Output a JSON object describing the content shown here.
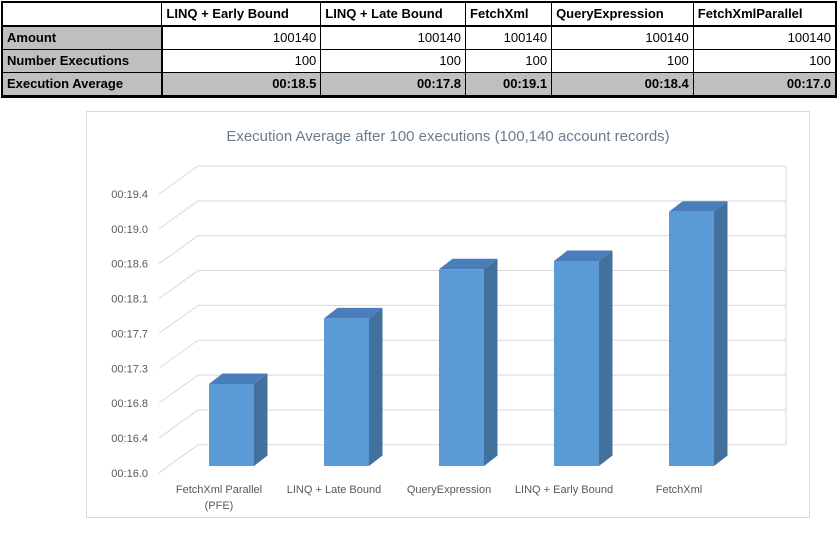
{
  "table": {
    "header": [
      "",
      "LINQ + Early Bound",
      "LINQ + Late Bound",
      "FetchXml",
      "QueryExpression",
      "FetchXmlParallel"
    ],
    "rows": [
      {
        "label": "Amount",
        "values": [
          "100140",
          "100140",
          "100140",
          "100140",
          "100140"
        ]
      },
      {
        "label": "Number Executions",
        "values": [
          "100",
          "100",
          "100",
          "100",
          "100"
        ]
      },
      {
        "label": "Execution Average",
        "values": [
          "00:18.5",
          "00:17.8",
          "00:19.1",
          "00:18.4",
          "00:17.0"
        ]
      }
    ]
  },
  "chart_data": {
    "type": "bar",
    "style": "3d-column",
    "title": "Execution Average after 100 executions (100,140 account records)",
    "categories": [
      "FetchXml Parallel (PFE)",
      "LINQ + Late Bound",
      "QueryExpression",
      "LINQ + Early Bound",
      "FetchXml"
    ],
    "category_lines": [
      [
        "FetchXml Parallel",
        "(PFE)"
      ],
      [
        "LINQ + Late Bound"
      ],
      [
        "QueryExpression"
      ],
      [
        "LINQ + Early Bound"
      ],
      [
        "FetchXml"
      ]
    ],
    "values_seconds": [
      17.0,
      17.8,
      18.4,
      18.5,
      19.1
    ],
    "value_labels": [
      "00:17.0",
      "00:17.8",
      "00:18.4",
      "00:18.5",
      "00:19.1"
    ],
    "y_ticks": [
      "00:19.4",
      "00:19.0",
      "00:18.6",
      "00:18.1",
      "00:17.7",
      "00:17.3",
      "00:16.8",
      "00:16.4",
      "00:16.0"
    ],
    "y_axis_range": [
      16.0,
      19.4
    ],
    "xlabel": "",
    "ylabel": "",
    "grid": true,
    "legend": "none",
    "colors": {
      "bar_front": "#5B9BD5",
      "bar_side": "#41719C",
      "bar_top": "#4A7EBB",
      "gridline": "#D9D9D9",
      "axis_text": "#595959",
      "title_text": "#6A7B8D",
      "border": "#D9D9D9",
      "table_fill": "#BFBFBF"
    }
  }
}
